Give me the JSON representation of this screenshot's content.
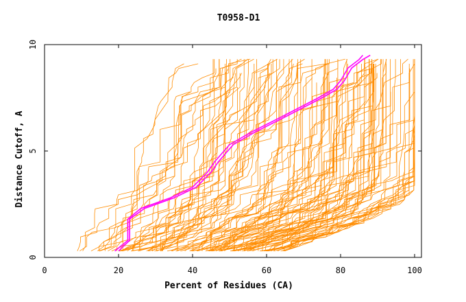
{
  "chart_data": {
    "type": "line",
    "title": "T0958-D1",
    "xlabel": "Percent of Residues (CA)",
    "ylabel": "Distance Cutoff, A",
    "xlim": [
      0,
      100
    ],
    "ylim": [
      0,
      10
    ],
    "x_ticks": [
      "0",
      "20",
      "40",
      "60",
      "80",
      "100"
    ],
    "y_ticks": [
      "0",
      "5",
      "10"
    ],
    "colors": {
      "background_models": "#ff8c00",
      "highlight_models": "#ff00ff",
      "axes": "#000000"
    },
    "highlight_series": [
      {
        "name": "highlight-model-1",
        "x": [
          19,
          22.5,
          22.5,
          26,
          34,
          40,
          44,
          46,
          50,
          56,
          64,
          74,
          78,
          80,
          82,
          85,
          86
        ],
        "y": [
          0.3,
          0.8,
          1.8,
          2.3,
          2.8,
          3.3,
          4.0,
          4.5,
          5.3,
          5.9,
          6.6,
          7.5,
          7.9,
          8.3,
          8.9,
          9.3,
          9.5
        ]
      },
      {
        "name": "highlight-model-2",
        "x": [
          20,
          23,
          23,
          27,
          35,
          41,
          45,
          47,
          51,
          57,
          65,
          75,
          79,
          81,
          83,
          86,
          88
        ],
        "y": [
          0.3,
          0.8,
          1.8,
          2.3,
          2.8,
          3.3,
          4.0,
          4.5,
          5.3,
          5.9,
          6.6,
          7.5,
          7.9,
          8.3,
          8.9,
          9.3,
          9.5
        ]
      }
    ],
    "background_series_count": 120,
    "background_envelope": {
      "left_edge": {
        "x": [
          7,
          11,
          16,
          21,
          25,
          29,
          33,
          36
        ],
        "y": [
          0.3,
          1.5,
          3.0,
          4.5,
          6.0,
          7.2,
          8.5,
          9.5
        ]
      },
      "right_edge": {
        "x": [
          65,
          85,
          96,
          100,
          100
        ],
        "y": [
          0.3,
          1.5,
          2.5,
          3.2,
          9.5
        ]
      }
    }
  }
}
